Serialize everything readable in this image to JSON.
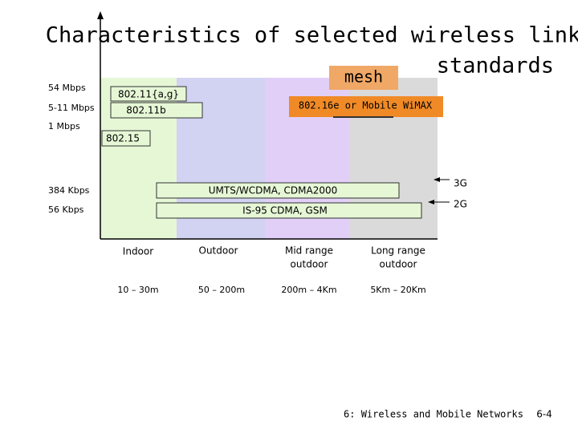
{
  "title": {
    "line1": "Characteristics of selected wireless link",
    "line2": "standards"
  },
  "rates": [
    "54 Mbps",
    "5-11 Mbps",
    "1 Mbps",
    "384 Kbps",
    "56 Kbps"
  ],
  "standards": {
    "wlan_ag": "802.11{a,g}",
    "wlan_b": "802.11b",
    "pan": "802.15",
    "mesh": "mesh",
    "wimax": "802.16e or Mobile WiMAX",
    "umts": "UMTS/WCDMA, CDMA2000",
    "gsm": "IS-95 CDMA, GSM"
  },
  "generations": [
    "3G",
    "2G"
  ],
  "columns": [
    {
      "label": [
        "Indoor"
      ],
      "range": "10 – 30m"
    },
    {
      "label": [
        "Outdoor"
      ],
      "range": "50 – 200m"
    },
    {
      "label": [
        "Mid range",
        "outdoor"
      ],
      "range": "200m – 4Km"
    },
    {
      "label": [
        "Long range",
        "outdoor"
      ],
      "range": "5Km – 20Km"
    }
  ],
  "footer": {
    "chapter": "6: Wireless and Mobile Networks",
    "page": "6-4"
  }
}
